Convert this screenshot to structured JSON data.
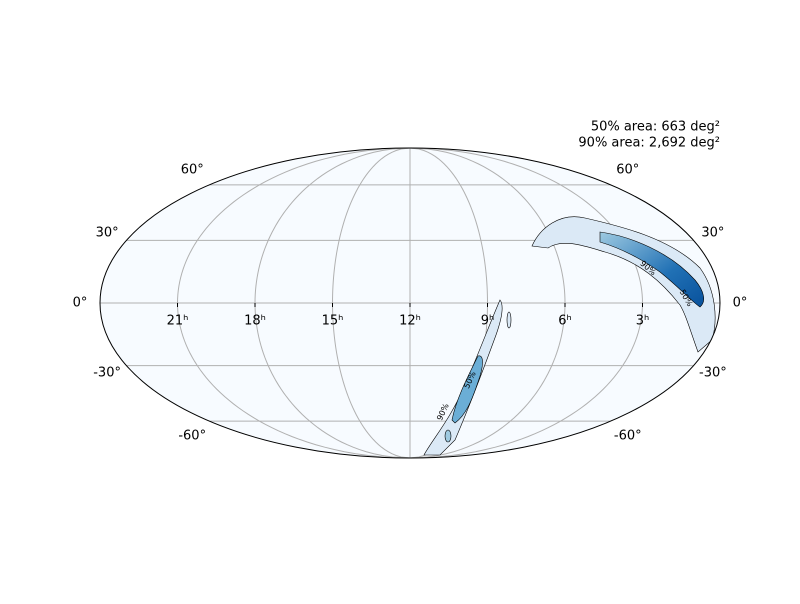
{
  "chart_data": {
    "type": "skymap",
    "projection": "mollweide",
    "annotations": [
      "50% area: 663 deg²",
      "90% area: 2,692 deg²"
    ],
    "xticks": [
      {
        "value": 21,
        "label": "21ʰ"
      },
      {
        "value": 18,
        "label": "18ʰ"
      },
      {
        "value": 15,
        "label": "15ʰ"
      },
      {
        "value": 12,
        "label": "12ʰ"
      },
      {
        "value": 9,
        "label": "9ʰ"
      },
      {
        "value": 6,
        "label": "6ʰ"
      },
      {
        "value": 3,
        "label": "3ʰ"
      }
    ],
    "xlim": [
      24,
      0
    ],
    "yticks": [
      {
        "value": 60,
        "label": "60°"
      },
      {
        "value": 30,
        "label": "30°"
      },
      {
        "value": 0,
        "label": "0°"
      },
      {
        "value": -30,
        "label": "-30°"
      },
      {
        "value": -60,
        "label": "-60°"
      }
    ],
    "ylim": [
      -90,
      90
    ],
    "contours": [
      {
        "value": 50,
        "label": "50%"
      },
      {
        "value": 90,
        "label": "90%"
      }
    ],
    "grid": true
  }
}
